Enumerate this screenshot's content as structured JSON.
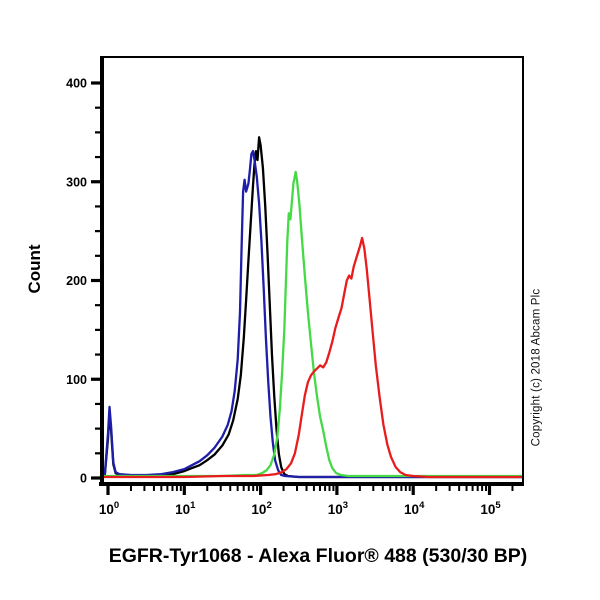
{
  "page": {
    "title": "EGFR-Tyr1068 - Alexa Fluor® 488 (530/30 BP)",
    "copyright": "Copyright (c) 2018 Abcam Plc"
  },
  "chart_data": {
    "type": "line",
    "subtype": "flow-cytometry-histogram",
    "title": "EGFR-Tyr1068 - Alexa Fluor® 488 (530/30 BP)",
    "xlabel": "",
    "ylabel": "Count",
    "x_scale": "log10",
    "xlim_log10": [
      -0.09,
      5.43
    ],
    "ylim": [
      0,
      425
    ],
    "grid": false,
    "legend": null,
    "x_major_ticks_log10": [
      0,
      1,
      2,
      3,
      4,
      5
    ],
    "x_tick_base": "10",
    "y_major_ticks": [
      0,
      100,
      200,
      300,
      400
    ],
    "y_minor_step": 25,
    "frame_color": "#000000",
    "series": [
      {
        "name": "black",
        "color": "#000000",
        "points_log10x_count": [
          [
            -0.09,
            2
          ],
          [
            -0.04,
            4
          ],
          [
            0.0,
            40
          ],
          [
            0.02,
            66
          ],
          [
            0.04,
            48
          ],
          [
            0.07,
            14
          ],
          [
            0.1,
            5
          ],
          [
            0.15,
            3
          ],
          [
            0.3,
            2
          ],
          [
            0.5,
            2
          ],
          [
            0.7,
            3
          ],
          [
            0.85,
            4
          ],
          [
            1.0,
            7
          ],
          [
            1.1,
            10
          ],
          [
            1.2,
            13
          ],
          [
            1.3,
            18
          ],
          [
            1.4,
            24
          ],
          [
            1.5,
            33
          ],
          [
            1.58,
            44
          ],
          [
            1.64,
            58
          ],
          [
            1.7,
            80
          ],
          [
            1.74,
            104
          ],
          [
            1.78,
            142
          ],
          [
            1.81,
            180
          ],
          [
            1.84,
            220
          ],
          [
            1.87,
            258
          ],
          [
            1.9,
            296
          ],
          [
            1.92,
            318
          ],
          [
            1.94,
            331
          ],
          [
            1.96,
            322
          ],
          [
            1.98,
            345
          ],
          [
            2.0,
            337
          ],
          [
            2.03,
            314
          ],
          [
            2.06,
            276
          ],
          [
            2.09,
            228
          ],
          [
            2.12,
            175
          ],
          [
            2.15,
            124
          ],
          [
            2.18,
            82
          ],
          [
            2.21,
            48
          ],
          [
            2.24,
            24
          ],
          [
            2.27,
            11
          ],
          [
            2.31,
            4
          ],
          [
            2.36,
            2
          ],
          [
            2.5,
            1
          ],
          [
            3.0,
            1
          ],
          [
            4.0,
            1
          ],
          [
            5.0,
            1
          ],
          [
            5.43,
            1
          ]
        ]
      },
      {
        "name": "blue",
        "color": "#1e1ea8",
        "points_log10x_count": [
          [
            -0.09,
            2
          ],
          [
            -0.04,
            5
          ],
          [
            0.0,
            45
          ],
          [
            0.02,
            72
          ],
          [
            0.04,
            52
          ],
          [
            0.07,
            16
          ],
          [
            0.1,
            6
          ],
          [
            0.15,
            4
          ],
          [
            0.3,
            3
          ],
          [
            0.5,
            3
          ],
          [
            0.7,
            4
          ],
          [
            0.85,
            6
          ],
          [
            1.0,
            9
          ],
          [
            1.1,
            13
          ],
          [
            1.2,
            17
          ],
          [
            1.3,
            23
          ],
          [
            1.4,
            31
          ],
          [
            1.5,
            42
          ],
          [
            1.57,
            54
          ],
          [
            1.62,
            68
          ],
          [
            1.66,
            88
          ],
          [
            1.7,
            120
          ],
          [
            1.73,
            168
          ],
          [
            1.75,
            230
          ],
          [
            1.77,
            290
          ],
          [
            1.79,
            302
          ],
          [
            1.81,
            290
          ],
          [
            1.84,
            298
          ],
          [
            1.86,
            312
          ],
          [
            1.88,
            328
          ],
          [
            1.9,
            331
          ],
          [
            1.92,
            322
          ],
          [
            1.95,
            305
          ],
          [
            1.98,
            278
          ],
          [
            2.01,
            240
          ],
          [
            2.04,
            192
          ],
          [
            2.07,
            142
          ],
          [
            2.1,
            98
          ],
          [
            2.13,
            62
          ],
          [
            2.16,
            36
          ],
          [
            2.19,
            18
          ],
          [
            2.23,
            8
          ],
          [
            2.27,
            3
          ],
          [
            2.32,
            2
          ],
          [
            2.5,
            1
          ],
          [
            3.5,
            1
          ],
          [
            5.43,
            1
          ]
        ]
      },
      {
        "name": "green",
        "color": "#46d946",
        "points_log10x_count": [
          [
            -0.09,
            2
          ],
          [
            0.5,
            2
          ],
          [
            1.0,
            2
          ],
          [
            1.5,
            2
          ],
          [
            1.8,
            3
          ],
          [
            1.95,
            3
          ],
          [
            2.02,
            5
          ],
          [
            2.08,
            8
          ],
          [
            2.13,
            13
          ],
          [
            2.18,
            24
          ],
          [
            2.22,
            42
          ],
          [
            2.25,
            68
          ],
          [
            2.28,
            105
          ],
          [
            2.31,
            150
          ],
          [
            2.33,
            195
          ],
          [
            2.35,
            240
          ],
          [
            2.37,
            268
          ],
          [
            2.39,
            262
          ],
          [
            2.41,
            280
          ],
          [
            2.43,
            298
          ],
          [
            2.46,
            310
          ],
          [
            2.48,
            300
          ],
          [
            2.51,
            276
          ],
          [
            2.54,
            244
          ],
          [
            2.58,
            204
          ],
          [
            2.62,
            168
          ],
          [
            2.66,
            136
          ],
          [
            2.7,
            106
          ],
          [
            2.74,
            82
          ],
          [
            2.78,
            62
          ],
          [
            2.82,
            48
          ],
          [
            2.86,
            32
          ],
          [
            2.9,
            18
          ],
          [
            2.94,
            10
          ],
          [
            2.99,
            5
          ],
          [
            3.05,
            3
          ],
          [
            3.15,
            2
          ],
          [
            3.5,
            2
          ],
          [
            4.0,
            2
          ],
          [
            4.5,
            2
          ],
          [
            5.0,
            2
          ],
          [
            5.43,
            2
          ]
        ]
      },
      {
        "name": "red",
        "color": "#e81c1c",
        "points_log10x_count": [
          [
            -0.09,
            1
          ],
          [
            0.5,
            1
          ],
          [
            1.0,
            1
          ],
          [
            1.5,
            2
          ],
          [
            1.9,
            2
          ],
          [
            2.1,
            3
          ],
          [
            2.2,
            4
          ],
          [
            2.28,
            6
          ],
          [
            2.34,
            9
          ],
          [
            2.4,
            15
          ],
          [
            2.45,
            25
          ],
          [
            2.5,
            44
          ],
          [
            2.54,
            64
          ],
          [
            2.58,
            84
          ],
          [
            2.62,
            97
          ],
          [
            2.66,
            104
          ],
          [
            2.7,
            108
          ],
          [
            2.74,
            111
          ],
          [
            2.78,
            114
          ],
          [
            2.82,
            112
          ],
          [
            2.86,
            117
          ],
          [
            2.9,
            127
          ],
          [
            2.94,
            138
          ],
          [
            2.98,
            152
          ],
          [
            3.02,
            162
          ],
          [
            3.06,
            172
          ],
          [
            3.1,
            188
          ],
          [
            3.13,
            200
          ],
          [
            3.16,
            205
          ],
          [
            3.19,
            202
          ],
          [
            3.22,
            214
          ],
          [
            3.26,
            224
          ],
          [
            3.3,
            234
          ],
          [
            3.33,
            243
          ],
          [
            3.36,
            232
          ],
          [
            3.39,
            212
          ],
          [
            3.43,
            180
          ],
          [
            3.47,
            146
          ],
          [
            3.51,
            114
          ],
          [
            3.56,
            82
          ],
          [
            3.61,
            54
          ],
          [
            3.66,
            34
          ],
          [
            3.71,
            21
          ],
          [
            3.77,
            11
          ],
          [
            3.83,
            6
          ],
          [
            3.9,
            3
          ],
          [
            4.0,
            2
          ],
          [
            4.2,
            1
          ],
          [
            4.6,
            1
          ],
          [
            5.0,
            1
          ],
          [
            5.43,
            1
          ]
        ]
      }
    ]
  }
}
